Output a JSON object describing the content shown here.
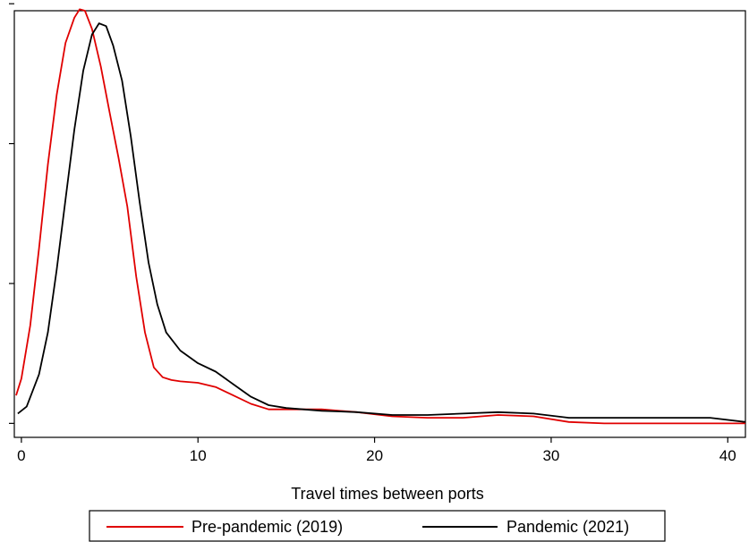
{
  "chart_data": {
    "type": "line",
    "title": "",
    "xlabel": "Travel times between ports",
    "ylabel": "",
    "xlim": [
      -0.4,
      41
    ],
    "ylim": [
      -0.01,
      0.295
    ],
    "xticks": [
      0,
      10,
      20,
      30,
      40
    ],
    "yticks": [
      0,
      0.1,
      0.2,
      0.3
    ],
    "show_ytick_labels": false,
    "grid": false,
    "legend_position": "bottom",
    "series": [
      {
        "name": "Pre-pandemic (2019)",
        "color": "#e00000",
        "points": [
          [
            -0.3,
            0.02
          ],
          [
            0.0,
            0.032
          ],
          [
            0.5,
            0.07
          ],
          [
            1.0,
            0.125
          ],
          [
            1.5,
            0.185
          ],
          [
            2.0,
            0.235
          ],
          [
            2.5,
            0.272
          ],
          [
            3.0,
            0.29
          ],
          [
            3.3,
            0.296
          ],
          [
            3.6,
            0.295
          ],
          [
            4.0,
            0.282
          ],
          [
            4.5,
            0.255
          ],
          [
            5.0,
            0.222
          ],
          [
            5.5,
            0.19
          ],
          [
            6.0,
            0.155
          ],
          [
            6.5,
            0.105
          ],
          [
            7.0,
            0.065
          ],
          [
            7.5,
            0.04
          ],
          [
            8.0,
            0.033
          ],
          [
            8.5,
            0.031
          ],
          [
            9.0,
            0.03
          ],
          [
            10.0,
            0.029
          ],
          [
            11.0,
            0.026
          ],
          [
            12.0,
            0.02
          ],
          [
            13.0,
            0.014
          ],
          [
            14.0,
            0.01
          ],
          [
            15.0,
            0.01
          ],
          [
            17.0,
            0.01
          ],
          [
            19.0,
            0.008
          ],
          [
            21.0,
            0.005
          ],
          [
            23.0,
            0.004
          ],
          [
            25.0,
            0.004
          ],
          [
            27.0,
            0.006
          ],
          [
            29.0,
            0.005
          ],
          [
            31.0,
            0.001
          ],
          [
            33.0,
            0.0
          ],
          [
            36.0,
            0.0
          ],
          [
            40.0,
            0.0
          ],
          [
            41.0,
            0.0
          ]
        ]
      },
      {
        "name": "Pandemic (2021)",
        "color": "#000000",
        "points": [
          [
            -0.2,
            0.007
          ],
          [
            0.3,
            0.012
          ],
          [
            1.0,
            0.035
          ],
          [
            1.5,
            0.065
          ],
          [
            2.0,
            0.11
          ],
          [
            2.5,
            0.16
          ],
          [
            3.0,
            0.21
          ],
          [
            3.5,
            0.252
          ],
          [
            4.0,
            0.278
          ],
          [
            4.4,
            0.286
          ],
          [
            4.8,
            0.284
          ],
          [
            5.2,
            0.27
          ],
          [
            5.7,
            0.245
          ],
          [
            6.2,
            0.205
          ],
          [
            6.7,
            0.158
          ],
          [
            7.2,
            0.115
          ],
          [
            7.7,
            0.085
          ],
          [
            8.2,
            0.065
          ],
          [
            9.0,
            0.052
          ],
          [
            10.0,
            0.043
          ],
          [
            11.0,
            0.037
          ],
          [
            12.0,
            0.028
          ],
          [
            13.0,
            0.019
          ],
          [
            14.0,
            0.013
          ],
          [
            15.0,
            0.011
          ],
          [
            17.0,
            0.009
          ],
          [
            19.0,
            0.008
          ],
          [
            21.0,
            0.006
          ],
          [
            23.0,
            0.006
          ],
          [
            25.0,
            0.007
          ],
          [
            27.0,
            0.008
          ],
          [
            29.0,
            0.007
          ],
          [
            31.0,
            0.004
          ],
          [
            33.0,
            0.004
          ],
          [
            36.0,
            0.004
          ],
          [
            39.0,
            0.004
          ],
          [
            41.0,
            0.001
          ]
        ]
      }
    ]
  }
}
